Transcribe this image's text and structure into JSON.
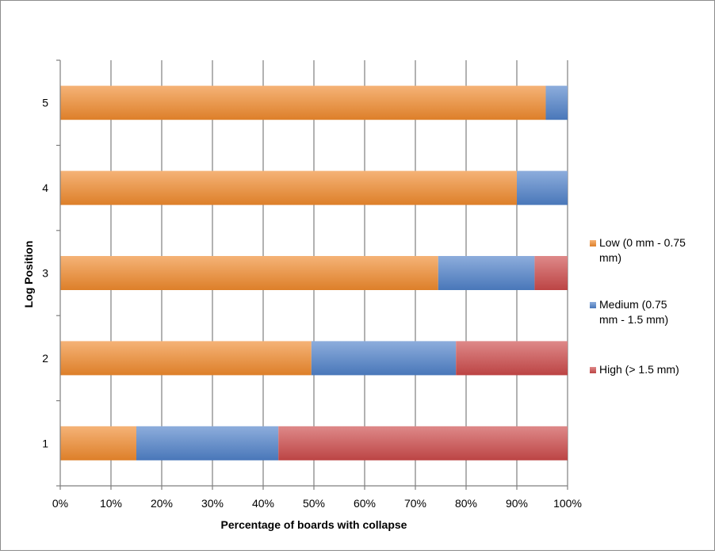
{
  "chart_data": {
    "type": "bar",
    "orientation": "horizontal",
    "stacked": "percent",
    "xlabel": "Percentage of boards with collapse",
    "ylabel": "Log Position",
    "xlim": [
      0,
      100
    ],
    "x_ticks": [
      "0%",
      "10%",
      "20%",
      "30%",
      "40%",
      "50%",
      "60%",
      "70%",
      "80%",
      "90%",
      "100%"
    ],
    "categories": [
      "1",
      "2",
      "3",
      "4",
      "5"
    ],
    "series": [
      {
        "name": "Low (0 mm - 0.75 mm)",
        "legend_lines": [
          "Low (0 mm - 0.75",
          "mm)"
        ],
        "color": "#f08a2d",
        "values": [
          15,
          49.5,
          74.5,
          90,
          95.7
        ]
      },
      {
        "name": "Medium (0.75 mm - 1.5 mm)",
        "legend_lines": [
          "Medium (0.75",
          "mm - 1.5 mm)"
        ],
        "color": "#4f81c9",
        "values": [
          28,
          28.5,
          19,
          10,
          4.3
        ]
      },
      {
        "name": "High (> 1.5 mm)",
        "legend_lines": [
          "High (> 1.5 mm)"
        ],
        "color": "#cc4a4a",
        "values": [
          57,
          22,
          6.5,
          0,
          0
        ]
      }
    ],
    "grid": true,
    "legend_position": "right"
  }
}
